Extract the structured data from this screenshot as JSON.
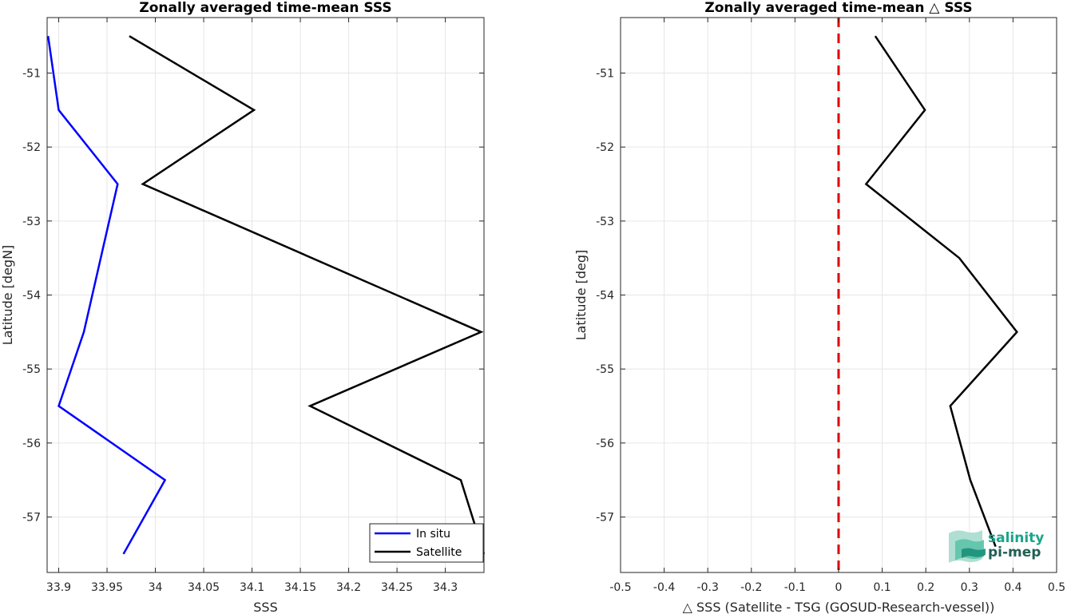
{
  "chart_data": [
    {
      "type": "line",
      "title": "Zonally averaged time-mean SSS",
      "xlabel": "SSS",
      "ylabel": "Latitude [degN]",
      "xlim": [
        33.888,
        34.34
      ],
      "ylim": [
        -57.75,
        -50.25
      ],
      "xticks": [
        33.9,
        33.95,
        34,
        34.05,
        34.1,
        34.15,
        34.2,
        34.25,
        34.3
      ],
      "xtick_labels": [
        "33.9",
        "33.95",
        "34",
        "34.05",
        "34.1",
        "34.15",
        "34.2",
        "34.25",
        "34.3"
      ],
      "yticks": [
        -51,
        -52,
        -53,
        -54,
        -55,
        -56,
        -57
      ],
      "ytick_labels": [
        "-51",
        "-52",
        "-53",
        "-54",
        "-55",
        "-56",
        "-57"
      ],
      "grid": true,
      "legend_location": "bottom-right",
      "series": [
        {
          "name": "In situ",
          "color": "#0000ff",
          "x": [
            33.889,
            33.9,
            33.961,
            33.926,
            33.9,
            34.01,
            33.967
          ],
          "y": [
            -50.5,
            -51.5,
            -52.5,
            -54.5,
            -55.5,
            -56.5,
            -57.5
          ]
        },
        {
          "name": "Satellite",
          "color": "#000000",
          "x": [
            33.973,
            34.102,
            33.987,
            34.337,
            34.16,
            34.316,
            34.34
          ],
          "y": [
            -50.5,
            -51.5,
            -52.5,
            -54.5,
            -55.5,
            -56.5,
            -57.5
          ]
        }
      ]
    },
    {
      "type": "line",
      "title": "Zonally averaged time-mean △ SSS",
      "xlabel": "△ SSS (Satellite - TSG (GOSUD-Research-vessel))",
      "ylabel": "Latitude [deg]",
      "xlim": [
        -0.5,
        0.5
      ],
      "ylim": [
        -57.75,
        -50.25
      ],
      "xticks": [
        -0.5,
        -0.4,
        -0.3,
        -0.2,
        -0.1,
        0,
        0.1,
        0.2,
        0.3,
        0.4,
        0.5
      ],
      "xtick_labels": [
        "-0.5",
        "-0.4",
        "-0.3",
        "-0.2",
        "-0.1",
        "0",
        "0.1",
        "0.2",
        "0.3",
        "0.4",
        "0.5"
      ],
      "yticks": [
        -51,
        -52,
        -53,
        -54,
        -55,
        -56,
        -57
      ],
      "ytick_labels": [
        "-51",
        "-52",
        "-53",
        "-54",
        "-55",
        "-56",
        "-57"
      ],
      "grid": true,
      "reference_line": {
        "x": 0,
        "color": "#e00000",
        "style": "dashed"
      },
      "series": [
        {
          "color": "#000000",
          "x": [
            0.084,
            0.198,
            0.063,
            0.277,
            0.409,
            0.256,
            0.302,
            0.36
          ],
          "y": [
            -50.5,
            -51.5,
            -52.5,
            -53.5,
            -54.5,
            -55.5,
            -56.5,
            -57.4
          ]
        }
      ]
    }
  ],
  "logo": {
    "line1": "salinity",
    "line2": "pi-mep",
    "color1": "#1aa58a",
    "color2": "#1f5f55"
  }
}
